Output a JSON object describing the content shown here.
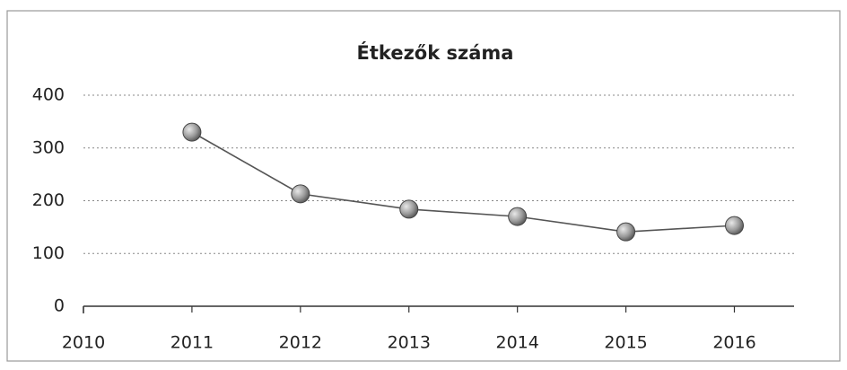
{
  "chart_data": {
    "type": "line",
    "title": "Étkezők száma",
    "x": [
      2011,
      2012,
      2013,
      2014,
      2015,
      2016
    ],
    "series": [
      {
        "name": "Étkezők",
        "color": "#555555",
        "values": [
          330,
          213,
          184,
          170,
          141,
          153
        ]
      }
    ],
    "xlim": [
      2010,
      2016.55
    ],
    "xticks": [
      2010,
      2011,
      2012,
      2013,
      2014,
      2015,
      2016
    ],
    "ylim": [
      0,
      400
    ],
    "yticks": [
      0,
      100,
      200,
      300,
      400
    ],
    "grid": true
  }
}
